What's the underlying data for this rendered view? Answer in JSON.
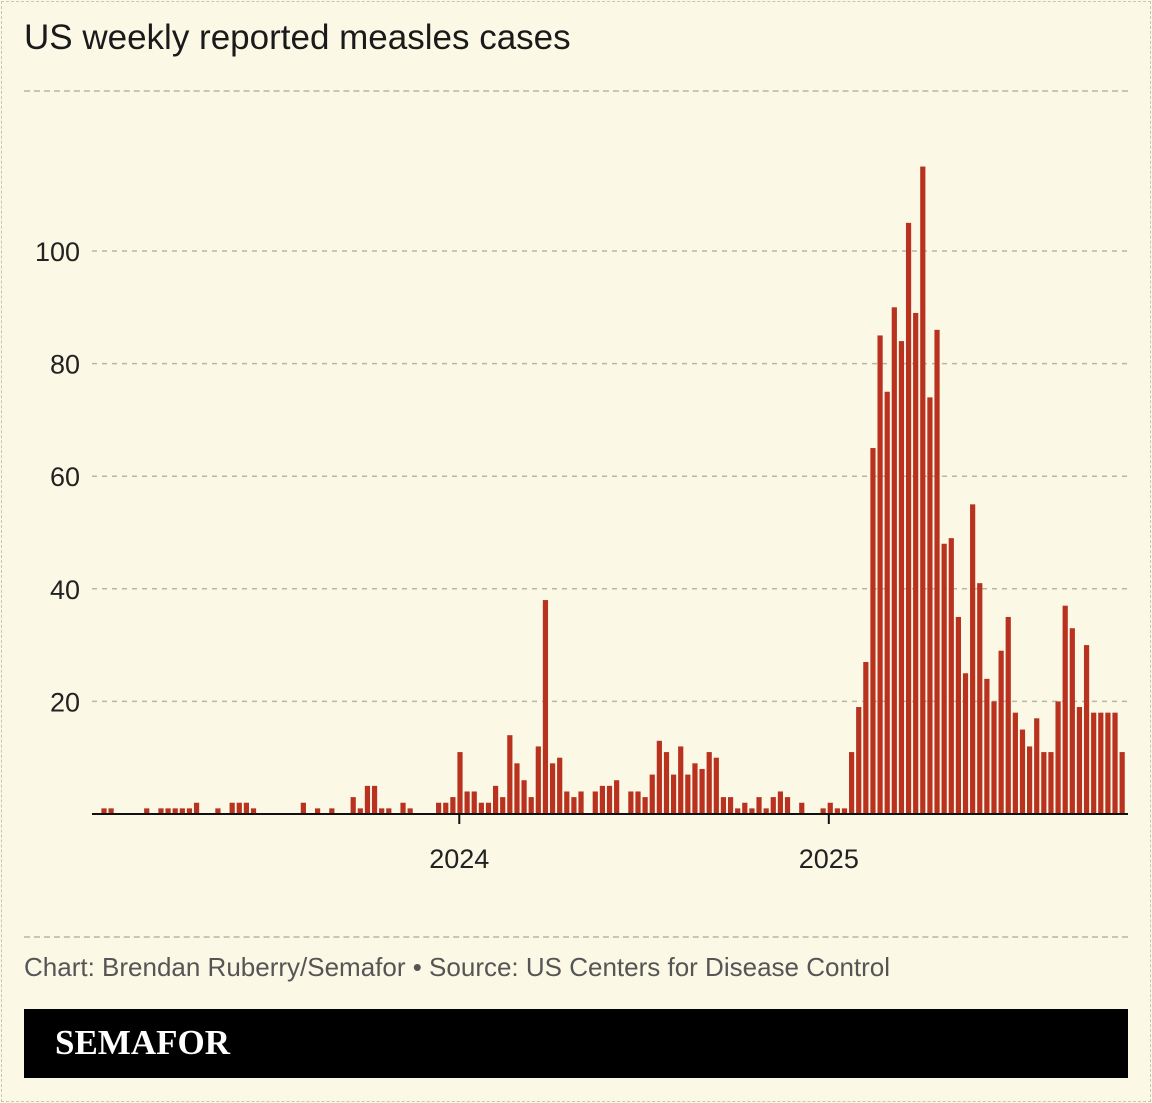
{
  "chart_data": {
    "type": "bar",
    "title": "US weekly reported measles cases",
    "xlabel": "",
    "ylabel": "",
    "ylim": [
      0,
      118
    ],
    "yticks": [
      20,
      40,
      60,
      80,
      100
    ],
    "grid": true,
    "x_unit": "week index (week 0 ≈ mid-January 2023)",
    "xticks": [
      {
        "label": "2024",
        "week": 49.9
      },
      {
        "label": "2025",
        "week": 101.8
      }
    ],
    "bar_color": "#b8321f",
    "values": [
      1,
      1,
      0,
      0,
      0,
      0,
      1,
      0,
      1,
      1,
      1,
      1,
      1,
      2,
      0,
      0,
      1,
      0,
      2,
      2,
      2,
      1,
      0,
      0,
      0,
      0,
      0,
      0,
      2,
      0,
      1,
      0,
      1,
      0,
      0,
      3,
      1,
      5,
      5,
      1,
      1,
      0,
      2,
      1,
      0,
      0,
      0,
      2,
      2,
      3,
      11,
      4,
      4,
      2,
      2,
      5,
      3,
      14,
      9,
      6,
      3,
      12,
      38,
      9,
      10,
      4,
      3,
      4,
      0,
      4,
      5,
      5,
      6,
      0,
      4,
      4,
      3,
      7,
      13,
      11,
      7,
      12,
      7,
      9,
      8,
      11,
      10,
      3,
      3,
      1,
      2,
      1,
      3,
      1,
      3,
      4,
      3,
      0,
      2,
      0,
      0,
      1,
      2,
      1,
      1,
      11,
      19,
      27,
      65,
      85,
      75,
      90,
      84,
      105,
      89,
      115,
      74,
      86,
      48,
      49,
      35,
      25,
      55,
      41,
      24,
      20,
      29,
      35,
      18,
      15,
      12,
      17,
      11,
      11,
      20,
      37,
      33,
      19,
      30,
      18,
      18,
      18,
      18,
      11
    ]
  },
  "footer": {
    "source": "Chart: Brendan Ruberry/Semafor • Source: US Centers for Disease Control",
    "brand": "SEMAFOR"
  }
}
